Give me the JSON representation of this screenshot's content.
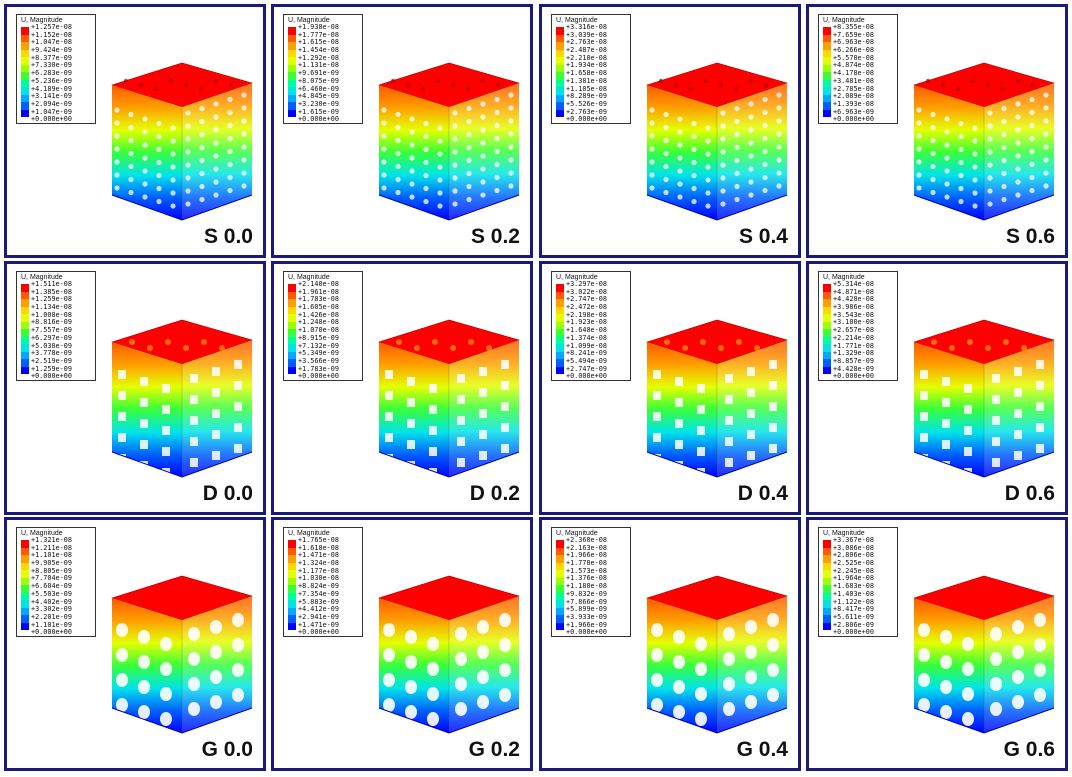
{
  "legend_title": "U, Magnitude",
  "contour_colors": [
    "#ff0000",
    "#ff5a00",
    "#ff9e00",
    "#ffd800",
    "#e4ff00",
    "#9cff00",
    "#38ff3c",
    "#00ff9c",
    "#00e4e8",
    "#00a8ff",
    "#0060ff",
    "#0000ff"
  ],
  "panels": [
    {
      "label": "S 0.0",
      "type": "S",
      "values": [
        "+1.257e-08",
        "+1.152e-08",
        "+1.047e-08",
        "+9.424e-09",
        "+8.377e-09",
        "+7.330e-09",
        "+6.283e-09",
        "+5.236e-09",
        "+4.189e-09",
        "+3.141e-09",
        "+2.094e-09",
        "+1.047e-09",
        "+0.000e+00"
      ]
    },
    {
      "label": "S 0.2",
      "type": "S",
      "values": [
        "+1.938e-08",
        "+1.777e-08",
        "+1.615e-08",
        "+1.454e-08",
        "+1.292e-08",
        "+1.131e-08",
        "+9.691e-09",
        "+8.075e-09",
        "+6.460e-09",
        "+4.845e-09",
        "+3.230e-09",
        "+1.615e-09",
        "+0.000e+00"
      ]
    },
    {
      "label": "S 0.4",
      "type": "S",
      "values": [
        "+3.316e-08",
        "+3.039e-08",
        "+2.763e-08",
        "+2.487e-08",
        "+2.210e-08",
        "+1.934e-08",
        "+1.658e-08",
        "+1.381e-08",
        "+1.105e-08",
        "+8.289e-09",
        "+5.526e-09",
        "+2.763e-09",
        "+0.000e+00"
      ]
    },
    {
      "label": "S 0.6",
      "type": "S",
      "values": [
        "+8.355e-08",
        "+7.659e-08",
        "+6.963e-08",
        "+6.266e-08",
        "+5.570e-08",
        "+4.874e-08",
        "+4.178e-08",
        "+3.481e-08",
        "+2.785e-08",
        "+2.089e-08",
        "+1.393e-08",
        "+6.963e-09",
        "+0.000e+00"
      ]
    },
    {
      "label": "D 0.0",
      "type": "D",
      "values": [
        "+1.511e-08",
        "+1.385e-08",
        "+1.259e-08",
        "+1.134e-08",
        "+1.008e-08",
        "+8.816e-09",
        "+7.557e-09",
        "+6.297e-09",
        "+5.038e-09",
        "+3.778e-09",
        "+2.519e-09",
        "+1.259e-09",
        "+0.000e+00"
      ]
    },
    {
      "label": "D 0.2",
      "type": "D",
      "values": [
        "+2.140e-08",
        "+1.961e-08",
        "+1.783e-08",
        "+1.605e-08",
        "+1.426e-08",
        "+1.248e-08",
        "+1.070e-08",
        "+8.915e-09",
        "+7.132e-09",
        "+5.349e-09",
        "+3.566e-09",
        "+1.783e-09",
        "+0.000e+00"
      ]
    },
    {
      "label": "D 0.4",
      "type": "D",
      "values": [
        "+3.297e-08",
        "+3.022e-08",
        "+2.747e-08",
        "+2.472e-08",
        "+2.198e-08",
        "+1.923e-08",
        "+1.648e-08",
        "+1.374e-08",
        "+1.099e-08",
        "+8.241e-09",
        "+5.494e-09",
        "+2.747e-09",
        "+0.000e+00"
      ]
    },
    {
      "label": "D 0.6",
      "type": "D",
      "values": [
        "+5.314e-08",
        "+4.871e-08",
        "+4.428e-08",
        "+3.986e-08",
        "+3.543e-08",
        "+3.100e-08",
        "+2.657e-08",
        "+2.214e-08",
        "+1.771e-08",
        "+1.329e-08",
        "+8.857e-09",
        "+4.428e-09",
        "+0.000e+00"
      ]
    },
    {
      "label": "G 0.0",
      "type": "G",
      "values": [
        "+1.321e-08",
        "+1.211e-08",
        "+1.101e-08",
        "+9.905e-09",
        "+8.805e-09",
        "+7.704e-09",
        "+6.604e-09",
        "+5.503e-09",
        "+4.402e-09",
        "+3.302e-09",
        "+2.201e-09",
        "+1.101e-09",
        "+0.000e+00"
      ]
    },
    {
      "label": "G 0.2",
      "type": "G",
      "values": [
        "+1.765e-08",
        "+1.618e-08",
        "+1.471e-08",
        "+1.324e-08",
        "+1.177e-08",
        "+1.030e-08",
        "+8.824e-09",
        "+7.354e-09",
        "+5.883e-09",
        "+4.412e-09",
        "+2.941e-09",
        "+1.471e-09",
        "+0.000e+00"
      ]
    },
    {
      "label": "G 0.4",
      "type": "G",
      "values": [
        "+2.360e-08",
        "+2.163e-08",
        "+1.966e-08",
        "+1.770e-08",
        "+1.573e-08",
        "+1.376e-08",
        "+1.180e-08",
        "+9.832e-09",
        "+7.866e-09",
        "+5.899e-09",
        "+3.933e-09",
        "+1.966e-09",
        "+0.000e+00"
      ]
    },
    {
      "label": "G 0.6",
      "type": "G",
      "values": [
        "+3.367e-08",
        "+3.086e-08",
        "+2.806e-08",
        "+2.525e-08",
        "+2.245e-08",
        "+1.964e-08",
        "+1.683e-08",
        "+1.403e-08",
        "+1.122e-08",
        "+8.417e-09",
        "+5.611e-09",
        "+2.806e-09",
        "+0.000e+00"
      ]
    }
  ]
}
